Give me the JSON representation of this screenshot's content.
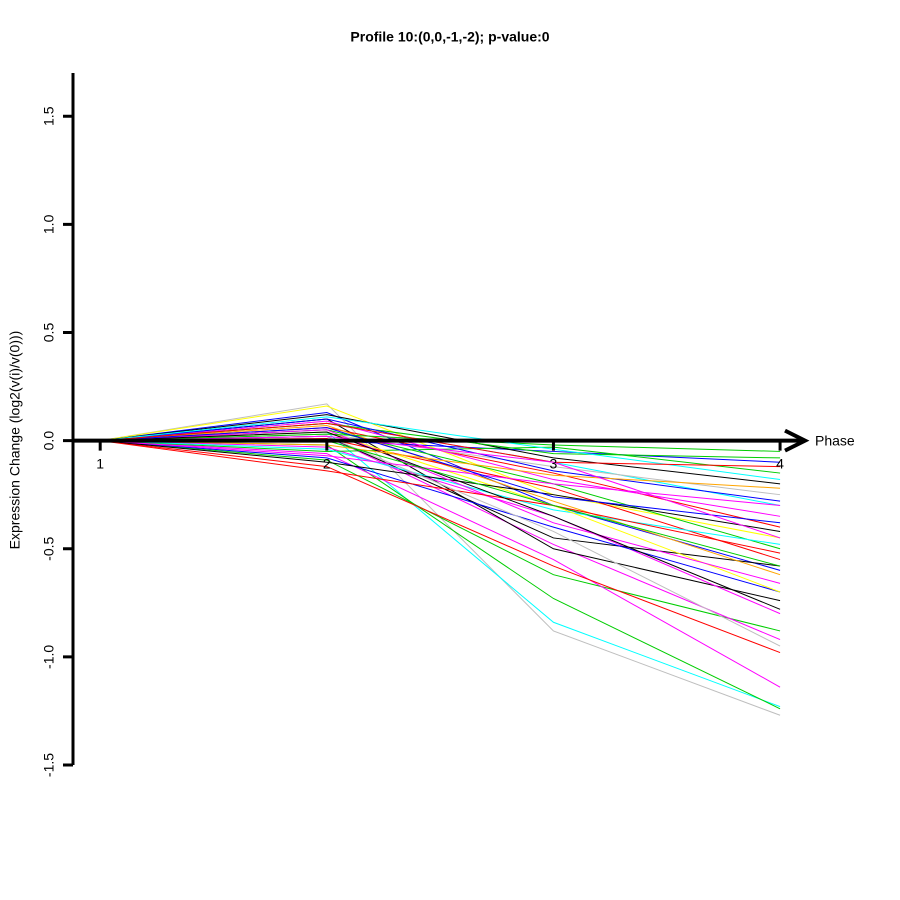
{
  "chart_data": {
    "type": "line",
    "title": "Profile 10:(0,0,-1,-2); p-value:0",
    "x_label": "Phase",
    "y_label": "Expression Change (log2(v(i)/v(0)))",
    "x": [
      1,
      2,
      3,
      4
    ],
    "xlim": [
      0.88,
      4.11
    ],
    "xticks": [
      1,
      2,
      3,
      4
    ],
    "ylim": [
      -1.5,
      1.7
    ],
    "yticks": [
      -1.5,
      {
        "value": -1,
        "label": "-1.0"
      },
      -0.5,
      {
        "value": 0,
        "label": "0.0"
      },
      0.5,
      {
        "value": 1,
        "label": "1.0"
      },
      1.5
    ],
    "series": [
      {
        "color": "#bebebe",
        "values": [
          0,
          0.17,
          -0.88,
          -1.27
        ]
      },
      {
        "color": "#00ffff",
        "values": [
          0,
          0.04,
          -0.84,
          -1.23
        ]
      },
      {
        "color": "#00cd00",
        "values": [
          0,
          -0.02,
          -0.73,
          -1.24
        ]
      },
      {
        "color": "#00cd00",
        "values": [
          0,
          -0.09,
          -0.62,
          -0.88
        ]
      },
      {
        "color": "#ff00ff",
        "values": [
          0,
          -0.06,
          -0.55,
          -1.14
        ]
      },
      {
        "color": "#ff00ff",
        "values": [
          0,
          0.02,
          -0.48,
          -0.92
        ]
      },
      {
        "color": "#ff0000",
        "values": [
          0,
          -0.12,
          -0.58,
          -0.98
        ]
      },
      {
        "color": "#000000",
        "values": [
          0,
          0.1,
          -0.5,
          -0.74
        ]
      },
      {
        "color": "#0000ff",
        "values": [
          0,
          0.13,
          -0.3,
          -0.6
        ]
      },
      {
        "color": "#ffff00",
        "values": [
          0,
          0.16,
          -0.25,
          -0.45
        ]
      },
      {
        "color": "#00cd00",
        "values": [
          0,
          0.05,
          -0.2,
          -0.5
        ]
      },
      {
        "color": "#ff00ff",
        "values": [
          0,
          -0.03,
          -0.35,
          -0.8
        ]
      },
      {
        "color": "#000000",
        "values": [
          0,
          0.02,
          -0.45,
          -0.58
        ]
      },
      {
        "color": "#00ffff",
        "values": [
          0,
          0.08,
          -0.1,
          -0.3
        ]
      },
      {
        "color": "#ff0000",
        "values": [
          0,
          0.06,
          -0.15,
          -0.4
        ]
      },
      {
        "color": "#0000ff",
        "values": [
          0,
          0.0,
          -0.05,
          -0.1
        ]
      },
      {
        "color": "#bebebe",
        "values": [
          0,
          0.03,
          -0.12,
          -0.25
        ]
      },
      {
        "color": "#00cd00",
        "values": [
          0,
          -0.05,
          -0.03,
          -0.15
        ]
      },
      {
        "color": "#ff00ff",
        "values": [
          0,
          0.09,
          -0.18,
          -0.35
        ]
      },
      {
        "color": "#000000",
        "values": [
          0,
          0.12,
          -0.08,
          -0.2
        ]
      },
      {
        "color": "#ffa500",
        "values": [
          0,
          0.07,
          -0.28,
          -0.62
        ]
      },
      {
        "color": "#0000ff",
        "values": [
          0,
          -0.08,
          -0.4,
          -0.7
        ]
      },
      {
        "color": "#ff0000",
        "values": [
          0,
          0.01,
          -0.22,
          -0.55
        ]
      },
      {
        "color": "#00ffff",
        "values": [
          0,
          -0.04,
          -0.32,
          -0.48
        ]
      },
      {
        "color": "#ffff00",
        "values": [
          0,
          0.04,
          -0.3,
          -0.7
        ]
      },
      {
        "color": "#00cd00",
        "values": [
          0,
          0.08,
          -0.06,
          -0.08
        ]
      },
      {
        "color": "#000000",
        "values": [
          0,
          -0.1,
          -0.25,
          -0.42
        ]
      },
      {
        "color": "#ff00ff",
        "values": [
          0,
          0.05,
          -0.38,
          -0.66
        ]
      },
      {
        "color": "#0000ff",
        "values": [
          0,
          0.1,
          -0.14,
          -0.28
        ]
      },
      {
        "color": "#ff0000",
        "values": [
          0,
          -0.14,
          -0.3,
          -0.52
        ]
      },
      {
        "color": "#bebebe",
        "values": [
          0,
          0.02,
          -0.42,
          -0.95
        ]
      },
      {
        "color": "#00cd00",
        "values": [
          0,
          0.03,
          -0.02,
          -0.05
        ]
      },
      {
        "color": "#ff00ff",
        "values": [
          0,
          -0.07,
          -0.2,
          -0.3
        ]
      },
      {
        "color": "#000000",
        "values": [
          0,
          0.04,
          -0.35,
          -0.78
        ]
      },
      {
        "color": "#00ffff",
        "values": [
          0,
          0.11,
          -0.04,
          -0.18
        ]
      },
      {
        "color": "#0000ff",
        "values": [
          0,
          0.06,
          -0.26,
          -0.38
        ]
      },
      {
        "color": "#ffa500",
        "values": [
          0,
          -0.02,
          -0.16,
          -0.22
        ]
      },
      {
        "color": "#ff0000",
        "values": [
          0,
          0.08,
          -0.1,
          -0.12
        ]
      },
      {
        "color": "#00cd00",
        "values": [
          0,
          0.0,
          -0.3,
          -0.58
        ]
      },
      {
        "color": "#ff00ff",
        "values": [
          0,
          0.02,
          -0.1,
          -0.45
        ]
      }
    ]
  }
}
